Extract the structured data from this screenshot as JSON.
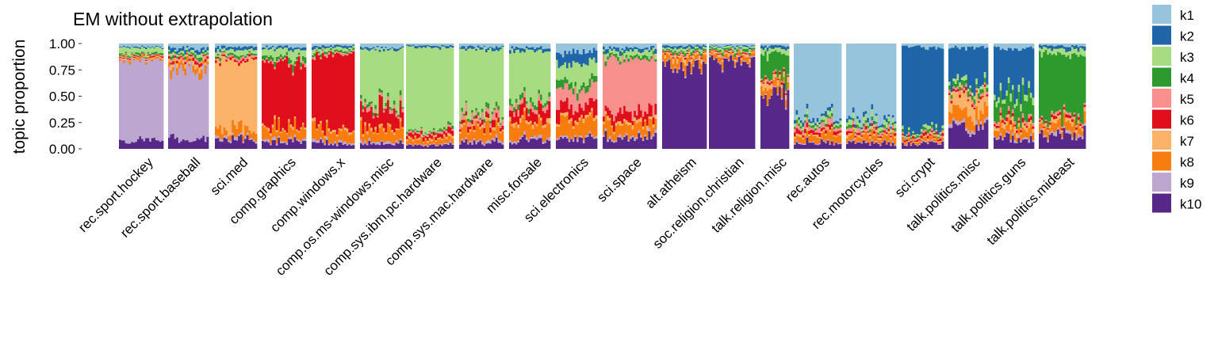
{
  "chart_data": {
    "type": "area",
    "title": "EM without extrapolation",
    "ylabel": "topic proportion",
    "xlabel": "",
    "ylim": [
      0,
      1
    ],
    "y_ticks": [
      "0.00",
      "0.25",
      "0.50",
      "0.75",
      "1.00"
    ],
    "grid": false,
    "legend_position": "right",
    "facet_order": "k10 at bottom up to k1 at top",
    "topics": [
      "k1",
      "k2",
      "k3",
      "k4",
      "k5",
      "k6",
      "k7",
      "k8",
      "k9",
      "k10"
    ],
    "colors": {
      "k1": "#96c4dc",
      "k2": "#1f65a8",
      "k3": "#a8dc82",
      "k4": "#2e9a2e",
      "k5": "#f8908e",
      "k6": "#df0f1c",
      "k7": "#fbb36a",
      "k8": "#f77d10",
      "k9": "#bda7d0",
      "k10": "#572888"
    },
    "groups": [
      {
        "name": "rec.sport.hockey",
        "values": [
          0.03,
          0.01,
          0.06,
          0.02,
          0.01,
          0.01,
          0.01,
          0.02,
          0.75,
          0.08
        ]
      },
      {
        "name": "rec.sport.baseball",
        "values": [
          0.04,
          0.03,
          0.02,
          0.02,
          0.02,
          0.02,
          0.03,
          0.05,
          0.68,
          0.09
        ]
      },
      {
        "name": "sci.med",
        "values": [
          0.03,
          0.03,
          0.04,
          0.02,
          0.02,
          0.02,
          0.65,
          0.08,
          0.02,
          0.09
        ]
      },
      {
        "name": "comp.graphics",
        "values": [
          0.03,
          0.02,
          0.07,
          0.04,
          0.02,
          0.6,
          0.02,
          0.11,
          0.02,
          0.07
        ]
      },
      {
        "name": "comp.windows.x",
        "values": [
          0.02,
          0.02,
          0.03,
          0.02,
          0.02,
          0.7,
          0.02,
          0.1,
          0.02,
          0.05
        ]
      },
      {
        "name": "comp.os.ms-windows.misc",
        "values": [
          0.04,
          0.02,
          0.52,
          0.03,
          0.03,
          0.17,
          0.02,
          0.1,
          0.02,
          0.05
        ]
      },
      {
        "name": "comp.sys.ibm.pc.hardware",
        "values": [
          0.02,
          0.02,
          0.76,
          0.02,
          0.02,
          0.04,
          0.02,
          0.05,
          0.01,
          0.04
        ]
      },
      {
        "name": "comp.sys.mac.hardware",
        "values": [
          0.03,
          0.02,
          0.62,
          0.03,
          0.05,
          0.04,
          0.02,
          0.11,
          0.02,
          0.06
        ]
      },
      {
        "name": "misc.forsale",
        "values": [
          0.04,
          0.03,
          0.48,
          0.04,
          0.05,
          0.1,
          0.03,
          0.13,
          0.02,
          0.08
        ]
      },
      {
        "name": "sci.electronics",
        "values": [
          0.08,
          0.1,
          0.2,
          0.06,
          0.15,
          0.12,
          0.03,
          0.15,
          0.02,
          0.09
        ]
      },
      {
        "name": "sci.space",
        "values": [
          0.04,
          0.03,
          0.04,
          0.03,
          0.52,
          0.08,
          0.03,
          0.11,
          0.02,
          0.1
        ]
      },
      {
        "name": "alt.atheism",
        "values": [
          0.02,
          0.02,
          0.02,
          0.02,
          0.01,
          0.01,
          0.03,
          0.07,
          0.01,
          0.79
        ]
      },
      {
        "name": "soc.religion.christian",
        "values": [
          0.02,
          0.01,
          0.02,
          0.02,
          0.01,
          0.01,
          0.02,
          0.04,
          0.01,
          0.84
        ]
      },
      {
        "name": "talk.religion.misc",
        "values": [
          0.02,
          0.03,
          0.05,
          0.22,
          0.02,
          0.02,
          0.05,
          0.09,
          0.01,
          0.49
        ]
      },
      {
        "name": "rec.autos",
        "values": [
          0.68,
          0.03,
          0.04,
          0.02,
          0.04,
          0.03,
          0.02,
          0.07,
          0.01,
          0.06
        ]
      },
      {
        "name": "rec.motorcycles",
        "values": [
          0.72,
          0.03,
          0.04,
          0.02,
          0.03,
          0.02,
          0.02,
          0.06,
          0.01,
          0.05
        ]
      },
      {
        "name": "sci.crypt",
        "values": [
          0.03,
          0.79,
          0.02,
          0.02,
          0.02,
          0.02,
          0.01,
          0.03,
          0.01,
          0.05
        ]
      },
      {
        "name": "talk.politics.misc",
        "values": [
          0.04,
          0.33,
          0.04,
          0.04,
          0.03,
          0.02,
          0.15,
          0.12,
          0.03,
          0.2
        ]
      },
      {
        "name": "talk.politics.guns",
        "values": [
          0.05,
          0.4,
          0.06,
          0.2,
          0.03,
          0.03,
          0.04,
          0.08,
          0.02,
          0.09
        ]
      },
      {
        "name": "talk.politics.mideast",
        "values": [
          0.02,
          0.03,
          0.05,
          0.6,
          0.02,
          0.02,
          0.03,
          0.08,
          0.02,
          0.13
        ]
      }
    ]
  }
}
